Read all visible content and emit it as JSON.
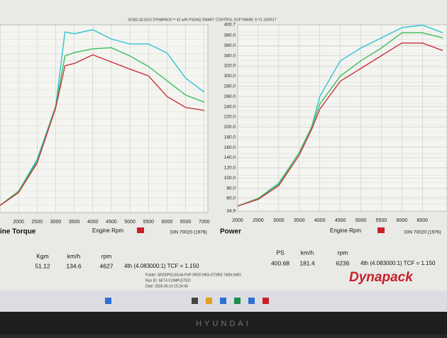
{
  "header": "91062-42-8116 DYNAPACK™ 42 with PSDAQ SMART CONTROL SOFTWARE ® V1.109/517",
  "run_info": [
    "Folder: SR20/PS13/Link-PnP SR20 HKS-GT3RS 740N.SMO",
    "Run ID: SET4 COMPLETED",
    "Date: 2025-05-19 15:24:45"
  ],
  "logo": "Dynapack",
  "bezel": "HYUNDAI",
  "chart_data": [
    {
      "type": "line",
      "title": "ine Torque",
      "x_label": "Engine Rpm",
      "note": "DIN 70020 (1976)",
      "x": [
        1500,
        2000,
        2500,
        3000,
        3250,
        3500,
        4000,
        4500,
        5000,
        5500,
        6000,
        6500,
        7000
      ],
      "series": [
        {
          "color": "#2ec4d6",
          "values": [
            6.9,
            10.7,
            19.2,
            33.3,
            53.1,
            52.6,
            53.7,
            51.2,
            49.9,
            49.9,
            47.5,
            40.8,
            37.1
          ]
        },
        {
          "color": "#3bbf5a",
          "values": [
            6.9,
            10.7,
            18.6,
            33.3,
            46.7,
            47.6,
            48.6,
            48.9,
            46.7,
            43.9,
            40.1,
            36.3,
            34.4
          ]
        },
        {
          "color": "#c8323a",
          "values": [
            6.9,
            10.3,
            18.2,
            32.9,
            44.1,
            44.7,
            47.0,
            45.1,
            43.2,
            41.4,
            35.9,
            33.0,
            32.2
          ]
        }
      ],
      "xlim": [
        1500,
        7100
      ],
      "ylim": [
        5,
        55
      ],
      "xticks": [
        2000,
        2500,
        3000,
        3500,
        4000,
        4500,
        5000,
        5500,
        6000,
        6500,
        7000
      ],
      "readout": {
        "labels": [
          "Kgm",
          "km/h",
          "rpm"
        ],
        "values": [
          51.12,
          134.6,
          4627
        ],
        "gear": "4th (4.083000:1) TCF = 1.150"
      }
    },
    {
      "type": "line",
      "title": "Power",
      "x_label": "Engine Rpm",
      "note": "DIN 70020 (1976)",
      "x": [
        2000,
        2500,
        3000,
        3500,
        3800,
        4000,
        4500,
        5000,
        5500,
        6000,
        6500,
        7000
      ],
      "series": [
        {
          "color": "#2ec4d6",
          "values": [
            45,
            60,
            90,
            150,
            200,
            260,
            330,
            355,
            375,
            395,
            400,
            385
          ]
        },
        {
          "color": "#3bbf5a",
          "values": [
            45,
            60,
            88,
            150,
            200,
            245,
            300,
            330,
            355,
            385,
            385,
            375
          ]
        },
        {
          "color": "#c8323a",
          "values": [
            45,
            58,
            85,
            145,
            195,
            235,
            290,
            315,
            340,
            365,
            365,
            350
          ]
        }
      ],
      "xlim": [
        2000,
        7100
      ],
      "ylim": [
        34.9,
        400.7
      ],
      "xticks": [
        2000,
        2500,
        3000,
        3500,
        4000,
        4500,
        5000,
        5500,
        6000,
        6500
      ],
      "yticks": [
        34.9,
        {
          "value": 60,
          "label": "60.0"
        },
        {
          "value": 80,
          "label": "80.0"
        },
        {
          "value": 100,
          "label": "100.0"
        },
        {
          "value": 120,
          "label": "120.0"
        },
        {
          "value": 140,
          "label": "140.0"
        },
        {
          "value": 160,
          "label": "160.0"
        },
        {
          "value": 180,
          "label": "180.0"
        },
        {
          "value": 200,
          "label": "200.0"
        },
        {
          "value": 220,
          "label": "220.0"
        },
        {
          "value": 240,
          "label": "240.0"
        },
        {
          "value": 260,
          "label": "260.0"
        },
        {
          "value": 280,
          "label": "280.0"
        },
        {
          "value": 300,
          "label": "300.0"
        },
        {
          "value": 320,
          "label": "320.0"
        },
        {
          "value": 340,
          "label": "340.0"
        },
        {
          "value": 360,
          "label": "360.0"
        },
        {
          "value": 380,
          "label": "380.0"
        },
        400.7
      ],
      "readout": {
        "labels": [
          "PS",
          "km/h",
          "rpm"
        ],
        "values": [
          400.68,
          181.4,
          6236
        ],
        "gear": "4th (4.083000:1) TCF = 1.150"
      }
    }
  ]
}
